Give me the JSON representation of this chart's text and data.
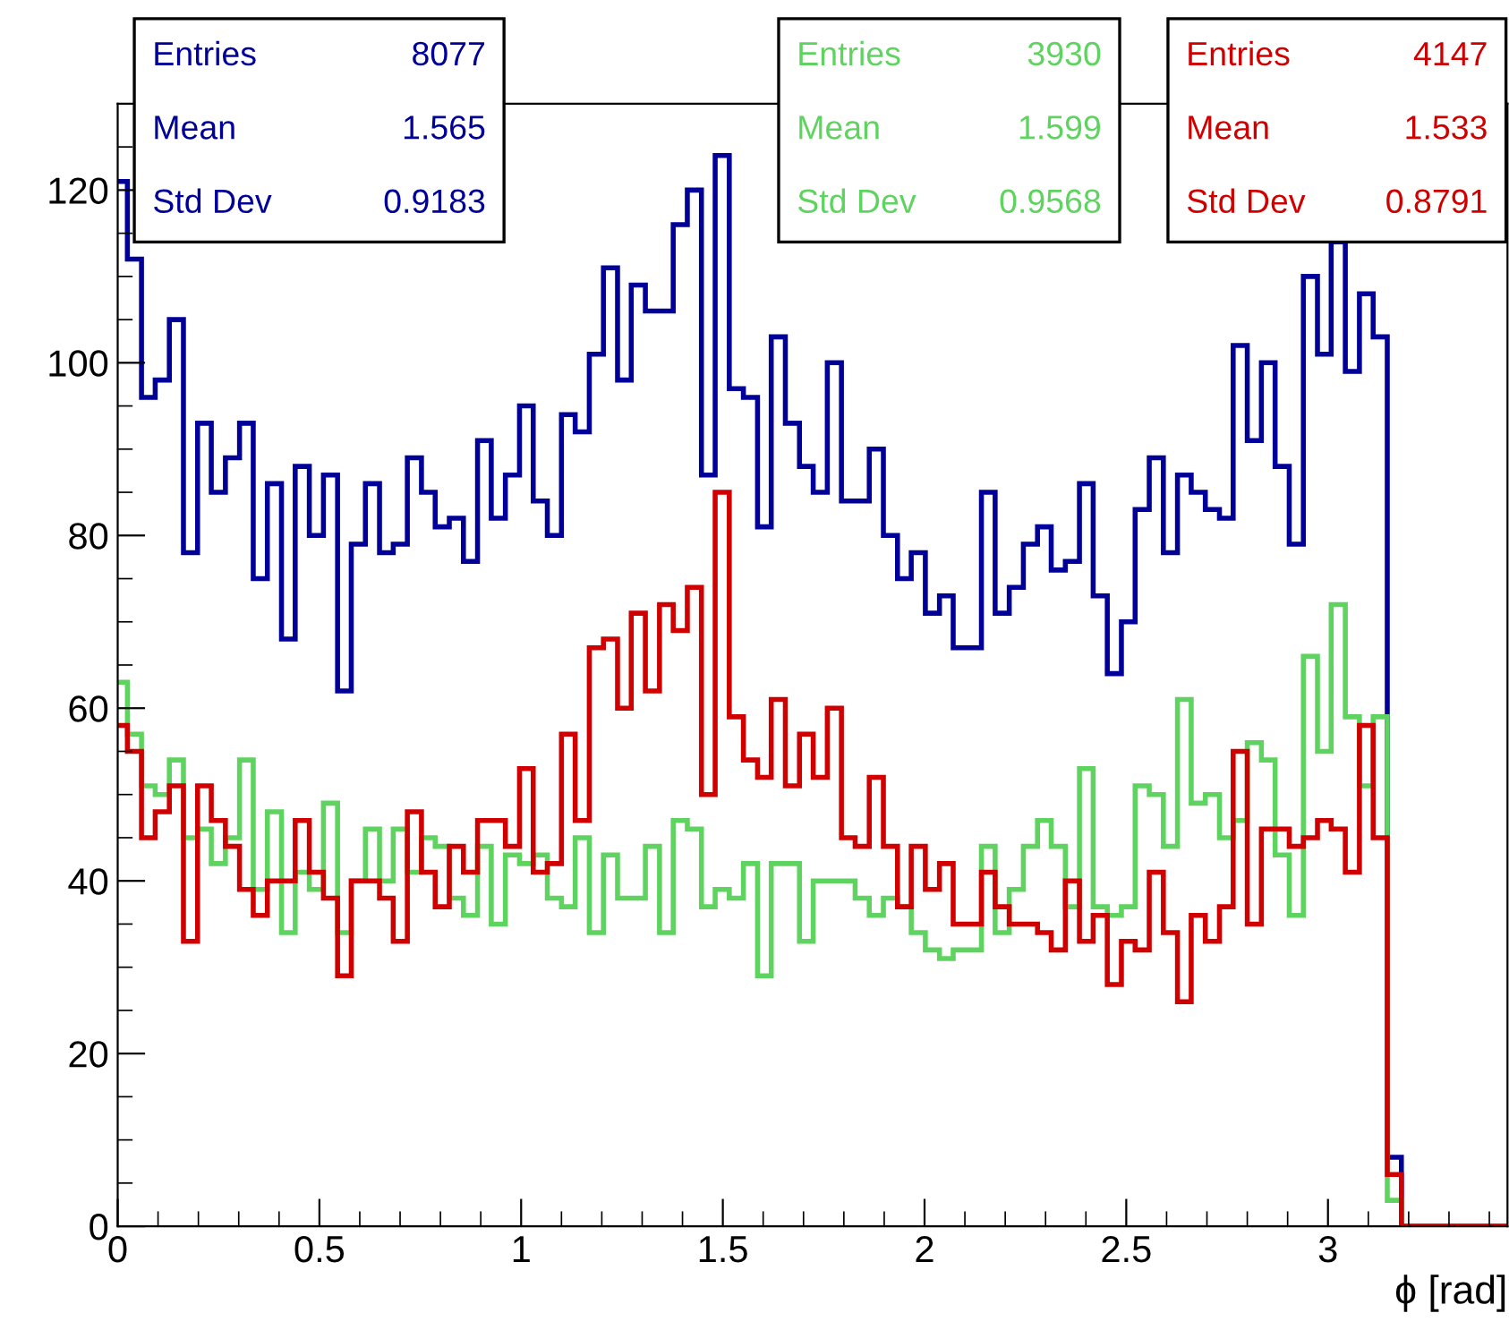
{
  "chart_data": {
    "type": "histogram",
    "xlabel": "ϕ [rad]",
    "bins": [
      0,
      0.024,
      0.059,
      0.093,
      0.128,
      0.163,
      0.198,
      0.232,
      0.267,
      0.302,
      0.336,
      0.371,
      0.406,
      0.44,
      0.475,
      0.51,
      0.545,
      0.579,
      0.614,
      0.649,
      0.683,
      0.718,
      0.753,
      0.787,
      0.822,
      0.857,
      0.892,
      0.926,
      0.961,
      0.996,
      1.03,
      1.065,
      1.1,
      1.134,
      1.169,
      1.204,
      1.239,
      1.273,
      1.308,
      1.343,
      1.377,
      1.412,
      1.447,
      1.481,
      1.516,
      1.551,
      1.586,
      1.62,
      1.655,
      1.69,
      1.724,
      1.759,
      1.794,
      1.828,
      1.863,
      1.898,
      1.933,
      1.967,
      2.002,
      2.037,
      2.071,
      2.106,
      2.141,
      2.175,
      2.21,
      2.245,
      2.28,
      2.314,
      2.349,
      2.384,
      2.418,
      2.453,
      2.488,
      2.522,
      2.557,
      2.592,
      2.627,
      2.661,
      2.696,
      2.731,
      2.765,
      2.8,
      2.835,
      2.869,
      2.904,
      2.939,
      2.974,
      3.008,
      3.043,
      3.078,
      3.112,
      3.147,
      3.182,
      3.445
    ],
    "series": [
      {
        "color": "#000099",
        "values": [
          121,
          112,
          96,
          98,
          105,
          78,
          93,
          85,
          89,
          93,
          75,
          86,
          68,
          88,
          80,
          87,
          62,
          79,
          86,
          78,
          79,
          89,
          85,
          81,
          82,
          77,
          91,
          82,
          87,
          95,
          84,
          80,
          94,
          92,
          101,
          111,
          98,
          109,
          106,
          106,
          116,
          120,
          87,
          124,
          97,
          96,
          81,
          103,
          93,
          88,
          85,
          100,
          84,
          84,
          90,
          80,
          75,
          78,
          71,
          73,
          67,
          67,
          85,
          71,
          74,
          79,
          81,
          76,
          77,
          86,
          73,
          64,
          70,
          83,
          89,
          78,
          87,
          85,
          83,
          82,
          102,
          91,
          100,
          88,
          79,
          110,
          101,
          114,
          99,
          108,
          103,
          8,
          0
        ]
      },
      {
        "color": "#5fd35f",
        "values": [
          63,
          57,
          51,
          50,
          54,
          45,
          46,
          42,
          45,
          54,
          39,
          48,
          34,
          41,
          39,
          49,
          34,
          40,
          46,
          40,
          46,
          41,
          45,
          44,
          38,
          36,
          44,
          35,
          43,
          42,
          43,
          38,
          37,
          45,
          34,
          43,
          38,
          38,
          44,
          34,
          47,
          46,
          37,
          39,
          38,
          42,
          29,
          42,
          42,
          33,
          40,
          40,
          40,
          38,
          36,
          38,
          37,
          34,
          32,
          31,
          32,
          32,
          44,
          34,
          39,
          44,
          47,
          44,
          37,
          53,
          37,
          36,
          37,
          51,
          50,
          44,
          61,
          49,
          50,
          45,
          47,
          56,
          54,
          43,
          36,
          66,
          55,
          72,
          59,
          51,
          59,
          3,
          0
        ]
      },
      {
        "color": "#d00000",
        "values": [
          58,
          55,
          45,
          48,
          51,
          33,
          51,
          47,
          44,
          39,
          36,
          40,
          40,
          47,
          41,
          38,
          29,
          40,
          40,
          38,
          33,
          48,
          41,
          37,
          44,
          41,
          47,
          47,
          44,
          53,
          41,
          42,
          57,
          47,
          67,
          68,
          60,
          71,
          62,
          72,
          69,
          74,
          50,
          85,
          59,
          54,
          52,
          61,
          51,
          57,
          52,
          60,
          45,
          44,
          52,
          44,
          37,
          44,
          39,
          42,
          35,
          35,
          41,
          37,
          35,
          35,
          34,
          32,
          40,
          33,
          36,
          28,
          33,
          32,
          41,
          34,
          26,
          36,
          33,
          37,
          55,
          35,
          46,
          46,
          44,
          45,
          47,
          46,
          41,
          58,
          45,
          6,
          0
        ]
      }
    ],
    "xlim": [
      0,
      3.445
    ],
    "ylim": [
      0,
      130
    ],
    "xticks": [
      0,
      0.5,
      1,
      1.5,
      2,
      2.5,
      3
    ],
    "yticks": [
      0,
      20,
      40,
      60,
      80,
      100,
      120
    ],
    "annotations": [
      "Entries",
      "8077",
      "Mean",
      "1.565",
      "Std Dev",
      "0.9183",
      "Entries",
      "3930",
      "Mean",
      "1.599",
      "Std Dev",
      "0.9568",
      "Entries",
      "4147",
      "Mean",
      "1.533",
      "Std Dev",
      "0.8791"
    ]
  }
}
